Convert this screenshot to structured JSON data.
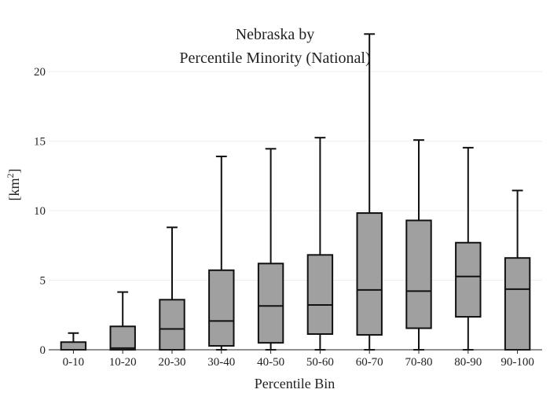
{
  "chart_data": {
    "type": "box",
    "title_lines": [
      "Nebraska  by",
      "Percentile Minority (National)"
    ],
    "xlabel": "Percentile Bin",
    "ylabel_base": "[km",
    "ylabel_sup": "2",
    "ylabel_close": "]",
    "ylim": [
      0,
      23
    ],
    "yticks": [
      0,
      5,
      10,
      15,
      20
    ],
    "grid": true,
    "legend": "none",
    "colors": {
      "box_fill": "#a0a0a0",
      "box_stroke": "#111111",
      "grid": "#eeeeee",
      "axis": "#222222"
    },
    "categories": [
      "0-10",
      "10-20",
      "20-30",
      "30-40",
      "40-50",
      "50-60",
      "60-70",
      "70-80",
      "80-90",
      "90-100"
    ],
    "boxes": [
      {
        "category": "0-10",
        "min": 0.0,
        "q1": 0.0,
        "median": 0.0,
        "q3": 0.55,
        "max": 1.2
      },
      {
        "category": "10-20",
        "min": 0.0,
        "q1": 0.0,
        "median": 0.12,
        "q3": 1.68,
        "max": 4.15
      },
      {
        "category": "20-30",
        "min": 0.0,
        "q1": 0.0,
        "median": 1.5,
        "q3": 3.6,
        "max": 8.8
      },
      {
        "category": "30-40",
        "min": 0.0,
        "q1": 0.28,
        "median": 2.07,
        "q3": 5.72,
        "max": 13.9
      },
      {
        "category": "40-50",
        "min": 0.0,
        "q1": 0.5,
        "median": 3.15,
        "q3": 6.2,
        "max": 14.45
      },
      {
        "category": "50-60",
        "min": 0.0,
        "q1": 1.13,
        "median": 3.22,
        "q3": 6.82,
        "max": 15.25
      },
      {
        "category": "60-70",
        "min": 0.0,
        "q1": 1.07,
        "median": 4.3,
        "q3": 9.83,
        "max": 22.7
      },
      {
        "category": "70-80",
        "min": 0.0,
        "q1": 1.55,
        "median": 4.22,
        "q3": 9.3,
        "max": 15.08
      },
      {
        "category": "80-90",
        "min": 0.0,
        "q1": 2.37,
        "median": 5.27,
        "q3": 7.7,
        "max": 14.53
      },
      {
        "category": "90-100",
        "min": 0.0,
        "q1": 0.0,
        "median": 4.36,
        "q3": 6.6,
        "max": 11.45
      }
    ]
  }
}
